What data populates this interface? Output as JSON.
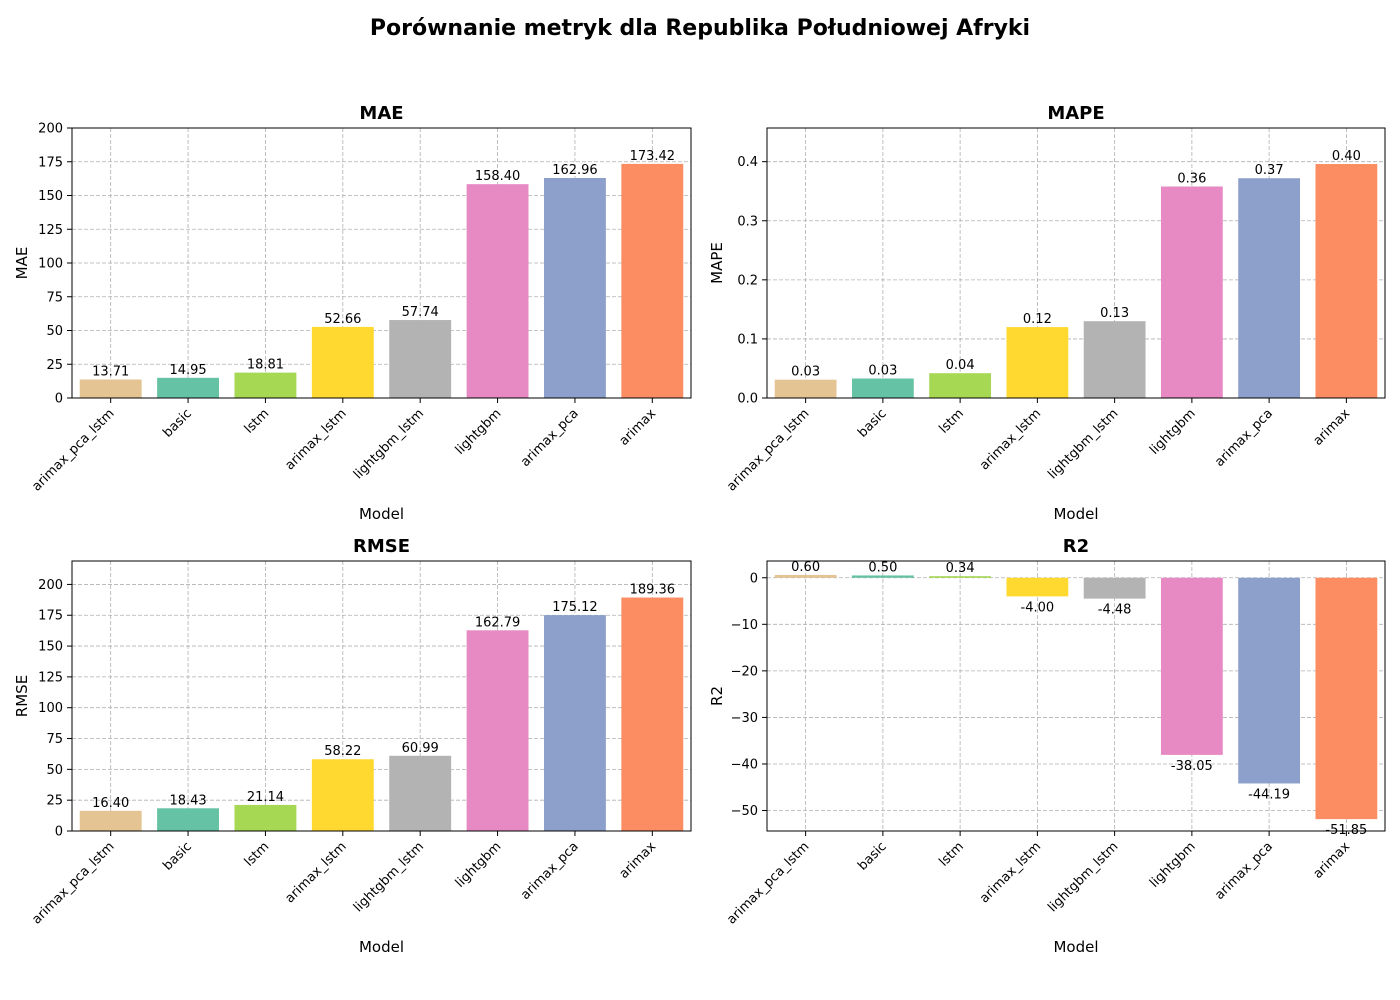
{
  "suptitle": "Porównanie metryk dla Republika Południowej Afryki",
  "colors": {
    "arimax_pca_lstm": "#e5c494",
    "basic": "#66c2a5",
    "lstm": "#a6d854",
    "arimax_lstm": "#ffd92f",
    "lightgbm_lstm": "#b3b3b3",
    "lightgbm": "#e78ac3",
    "arimax_pca": "#8da0cb",
    "arimax": "#fc8d62"
  },
  "chart_data": [
    {
      "type": "bar",
      "title": "MAE",
      "xlabel": "Model",
      "ylabel": "MAE",
      "categories": [
        "arimax_pca_lstm",
        "basic",
        "lstm",
        "arimax_lstm",
        "lightgbm_lstm",
        "lightgbm",
        "arimax_pca",
        "arimax"
      ],
      "values": [
        13.71,
        14.95,
        18.81,
        52.66,
        57.74,
        158.4,
        162.96,
        173.42
      ],
      "value_labels": [
        "13.71",
        "14.95",
        "18.81",
        "52.66",
        "57.74",
        "158.40",
        "162.96",
        "173.42"
      ],
      "ylim": [
        0,
        200
      ],
      "yticks": [
        0,
        25,
        50,
        75,
        100,
        125,
        150,
        175,
        200
      ],
      "ytick_labels": [
        "0",
        "25",
        "50",
        "75",
        "100",
        "125",
        "150",
        "175",
        "200"
      ],
      "grid": true
    },
    {
      "type": "bar",
      "title": "MAPE",
      "xlabel": "Model",
      "ylabel": "MAPE",
      "categories": [
        "arimax_pca_lstm",
        "basic",
        "lstm",
        "arimax_lstm",
        "lightgbm_lstm",
        "lightgbm",
        "arimax_pca",
        "arimax"
      ],
      "values": [
        0.031,
        0.033,
        0.042,
        0.12,
        0.13,
        0.358,
        0.372,
        0.396
      ],
      "value_labels": [
        "0.03",
        "0.03",
        "0.04",
        "0.12",
        "0.13",
        "0.36",
        "0.37",
        "0.40"
      ],
      "ylim": [
        0,
        0.457
      ],
      "yticks": [
        0,
        0.1,
        0.2,
        0.3,
        0.4
      ],
      "ytick_labels": [
        "0.0",
        "0.1",
        "0.2",
        "0.3",
        "0.4"
      ],
      "grid": true
    },
    {
      "type": "bar",
      "title": "RMSE",
      "xlabel": "Model",
      "ylabel": "RMSE",
      "categories": [
        "arimax_pca_lstm",
        "basic",
        "lstm",
        "arimax_lstm",
        "lightgbm_lstm",
        "lightgbm",
        "arimax_pca",
        "arimax"
      ],
      "values": [
        16.4,
        18.43,
        21.14,
        58.22,
        60.99,
        162.79,
        175.12,
        189.36
      ],
      "value_labels": [
        "16.40",
        "18.43",
        "21.14",
        "58.22",
        "60.99",
        "162.79",
        "175.12",
        "189.36"
      ],
      "ylim": [
        0,
        219
      ],
      "yticks": [
        0,
        25,
        50,
        75,
        100,
        125,
        150,
        175,
        200
      ],
      "ytick_labels": [
        "0",
        "25",
        "50",
        "75",
        "100",
        "125",
        "150",
        "175",
        "200"
      ],
      "grid": true
    },
    {
      "type": "bar",
      "title": "R2",
      "xlabel": "Model",
      "ylabel": "R2",
      "categories": [
        "arimax_pca_lstm",
        "basic",
        "lstm",
        "arimax_lstm",
        "lightgbm_lstm",
        "lightgbm",
        "arimax_pca",
        "arimax"
      ],
      "values": [
        0.6,
        0.5,
        0.34,
        -4.0,
        -4.48,
        -38.05,
        -44.19,
        -51.85
      ],
      "value_labels": [
        "0.60",
        "0.50",
        "0.34",
        "-4.00",
        "-4.48",
        "-38.05",
        "-44.19",
        "-51.85"
      ],
      "ylim": [
        -54.4,
        3.6
      ],
      "yticks": [
        0,
        -10,
        -20,
        -30,
        -40,
        -50
      ],
      "ytick_labels": [
        "0",
        "−10",
        "−20",
        "−30",
        "−40",
        "−50"
      ],
      "grid": true
    }
  ]
}
